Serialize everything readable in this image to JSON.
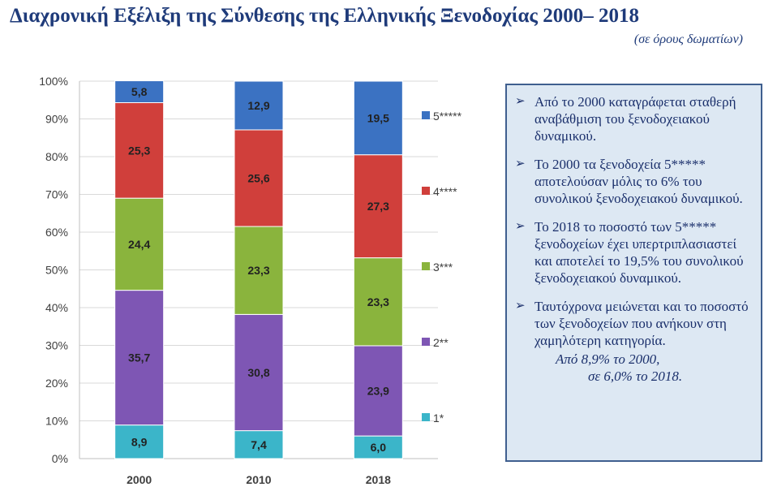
{
  "title": "Διαχρονική Εξέλιξη της Σύνθεσης της Ελληνικής Ξενοδοχίας 2000– 2018",
  "subtitle": "(σε όρους δωματίων)",
  "notes": [
    {
      "text": "Από το 2000 καταγράφεται σταθερή αναβάθμιση του ξενοδοχειακού δυναμικού."
    },
    {
      "text": "Το 2000 τα ξενοδοχεία 5***** αποτελούσαν μόλις το 6% του συνολικού ξενοδοχειακού δυναμικού."
    },
    {
      "text": "Το 2018 το ποσοστό των 5***** ξενοδοχείων έχει υπερτριπλασιαστεί και αποτελεί το 19,5% του συνολικού ξενοδοχειακού δυναμικού."
    },
    {
      "text": "Ταυτόχρονα μειώνεται και το ποσοστό των ξενοδοχείων που ανήκουν στη χαμηλότερη κατηγορία."
    }
  ],
  "notes_extra": [
    "Από 8,9% το 2000,",
    "σε 6,0% το 2018."
  ],
  "colors": {
    "accent": "#1f3b7a",
    "box_bg": "#dde8f3",
    "box_border": "#3f5f8f"
  },
  "chart_data": {
    "type": "bar",
    "stacked": true,
    "percent": true,
    "categories": [
      "2000",
      "2010",
      "2018"
    ],
    "series": [
      {
        "name": "1*",
        "values": [
          8.9,
          7.4,
          6.0
        ],
        "labels": [
          "8,9",
          "7,4",
          "6,0"
        ],
        "color": "#3bb5c9"
      },
      {
        "name": "2**",
        "values": [
          35.7,
          30.8,
          23.9
        ],
        "labels": [
          "35,7",
          "30,8",
          "23,9"
        ],
        "color": "#7e56b4"
      },
      {
        "name": "3***",
        "values": [
          24.4,
          23.3,
          23.3
        ],
        "labels": [
          "24,4",
          "23,3",
          "23,3"
        ],
        "color": "#8ab43d"
      },
      {
        "name": "4****",
        "values": [
          25.3,
          25.6,
          27.3
        ],
        "labels": [
          "25,3",
          "25,6",
          "27,3"
        ],
        "color": "#d03f3b"
      },
      {
        "name": "5*****",
        "values": [
          5.8,
          12.9,
          19.5
        ],
        "labels": [
          "5,8",
          "12,9",
          "19,5"
        ],
        "color": "#3b72c2"
      }
    ],
    "yticks": [
      "0%",
      "10%",
      "20%",
      "30%",
      "40%",
      "50%",
      "60%",
      "70%",
      "80%",
      "90%",
      "100%"
    ],
    "ylim": [
      0,
      100
    ],
    "grid": true,
    "legend_position": "right"
  }
}
